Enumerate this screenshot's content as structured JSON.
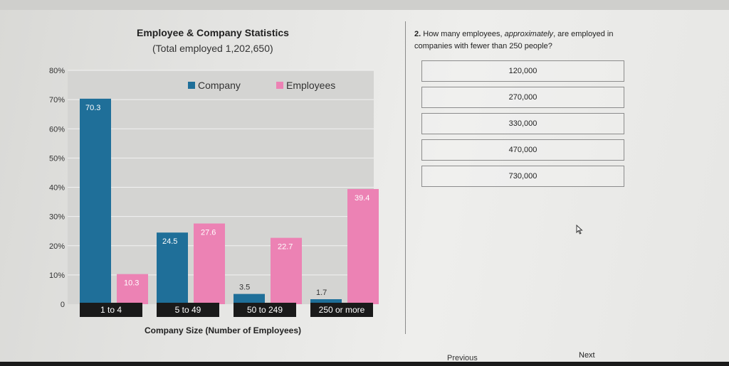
{
  "question": {
    "number": "2.",
    "text_before": "How many employees, ",
    "text_emph": "approximately",
    "text_after": ", are employed in companies with fewer than 250 people?",
    "options": [
      "120,000",
      "270,000",
      "330,000",
      "470,000",
      "730,000"
    ]
  },
  "nav": {
    "previous": "Previous",
    "next": "Next"
  },
  "icons": {
    "cursor": "mouse-pointer-icon"
  },
  "colors": {
    "company": "#1f6f99",
    "employees": "#ec82b4",
    "plot_bg": "#d4d4d2",
    "label_bg": "#1a1a1a"
  },
  "chart_data": {
    "type": "bar",
    "title": "Employee & Company Statistics",
    "subtitle": "(Total employed 1,202,650)",
    "xlabel": "Company Size (Number of Employees)",
    "ylabel": "",
    "categories": [
      "1 to 4",
      "5 to 49",
      "50 to 249",
      "250 or more"
    ],
    "series": [
      {
        "name": "Company",
        "values": [
          70.3,
          24.5,
          3.5,
          1.7
        ],
        "labels": [
          "70.3",
          "24.5",
          "3.5",
          "1.7"
        ]
      },
      {
        "name": "Employees",
        "values": [
          10.3,
          27.6,
          22.7,
          39.4
        ],
        "labels": [
          "10.3",
          "27.6",
          "22.7",
          "39.4"
        ]
      }
    ],
    "ylim": [
      0,
      80
    ],
    "yticks": [
      0,
      10,
      20,
      30,
      40,
      50,
      60,
      70,
      80
    ],
    "ytick_labels": [
      "0",
      "10%",
      "20%",
      "30%",
      "40%",
      "50%",
      "60%",
      "70%",
      "80%"
    ],
    "grid": true,
    "legend_position": "top"
  }
}
